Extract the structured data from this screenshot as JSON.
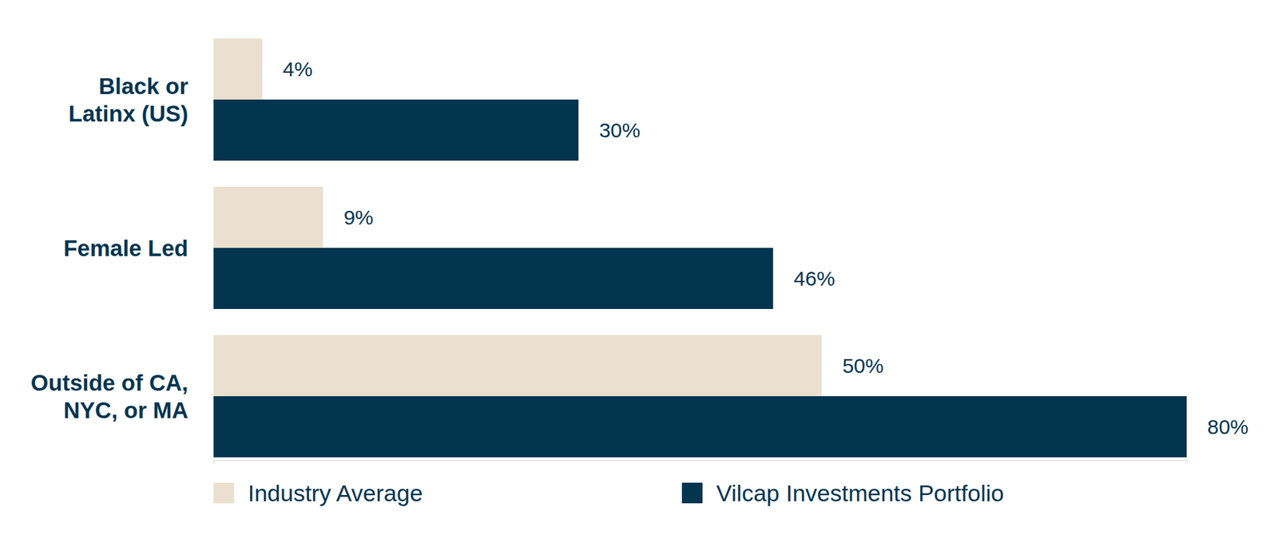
{
  "chart_data": {
    "type": "bar",
    "orientation": "horizontal",
    "categories": [
      "Black or\nLatinx (US)",
      "Female Led",
      "Outside of CA,\nNYC, or MA"
    ],
    "series": [
      {
        "name": "Industry Average",
        "color": "#ebe0cf",
        "values": [
          4,
          9,
          50
        ],
        "value_labels": [
          "4%",
          "9%",
          "50%"
        ]
      },
      {
        "name": "Vilcap Investments Portfolio",
        "color": "#04354f",
        "values": [
          30,
          46,
          80
        ],
        "value_labels": [
          "30%",
          "46%",
          "80%"
        ]
      }
    ],
    "xlim": [
      0,
      80
    ],
    "xticks": [
      0,
      80
    ],
    "tick_labels": false,
    "data_labels": true,
    "legend": "bottom",
    "grid": false
  }
}
